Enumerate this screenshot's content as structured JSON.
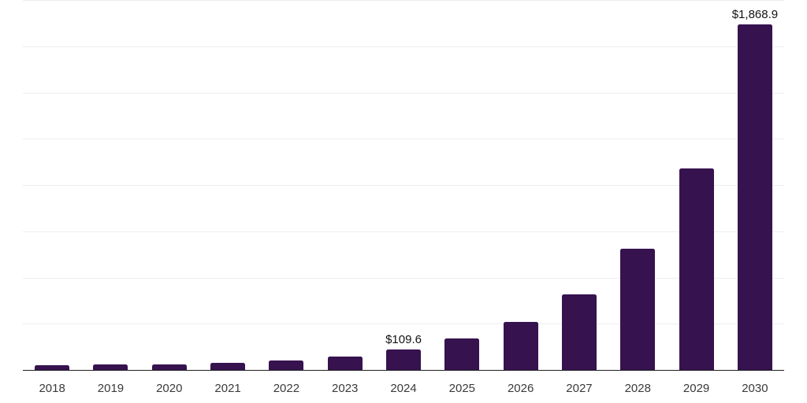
{
  "chart_data": {
    "type": "bar",
    "title": "",
    "xlabel": "",
    "ylabel": "",
    "categories": [
      "2018",
      "2019",
      "2020",
      "2021",
      "2022",
      "2023",
      "2024",
      "2025",
      "2026",
      "2027",
      "2028",
      "2029",
      "2030"
    ],
    "values": [
      27,
      31,
      29,
      37,
      53,
      74,
      109.6,
      169,
      260,
      408,
      655,
      1089,
      1868.9
    ],
    "data_labels": {
      "2024": "$109.6",
      "2030": "$1,868.9"
    },
    "ylim": [
      0,
      2000
    ],
    "gridline_step": 250,
    "grid": "horizontal-light",
    "legend": "none",
    "y_axis_labels_visible": false
  },
  "colors": {
    "background": "#ffffff",
    "bar": "#36124f",
    "gridline": "#ededed",
    "axis_line": "#1f1f1f",
    "tick_label": "#3a3a3a",
    "data_label": "#121212"
  }
}
